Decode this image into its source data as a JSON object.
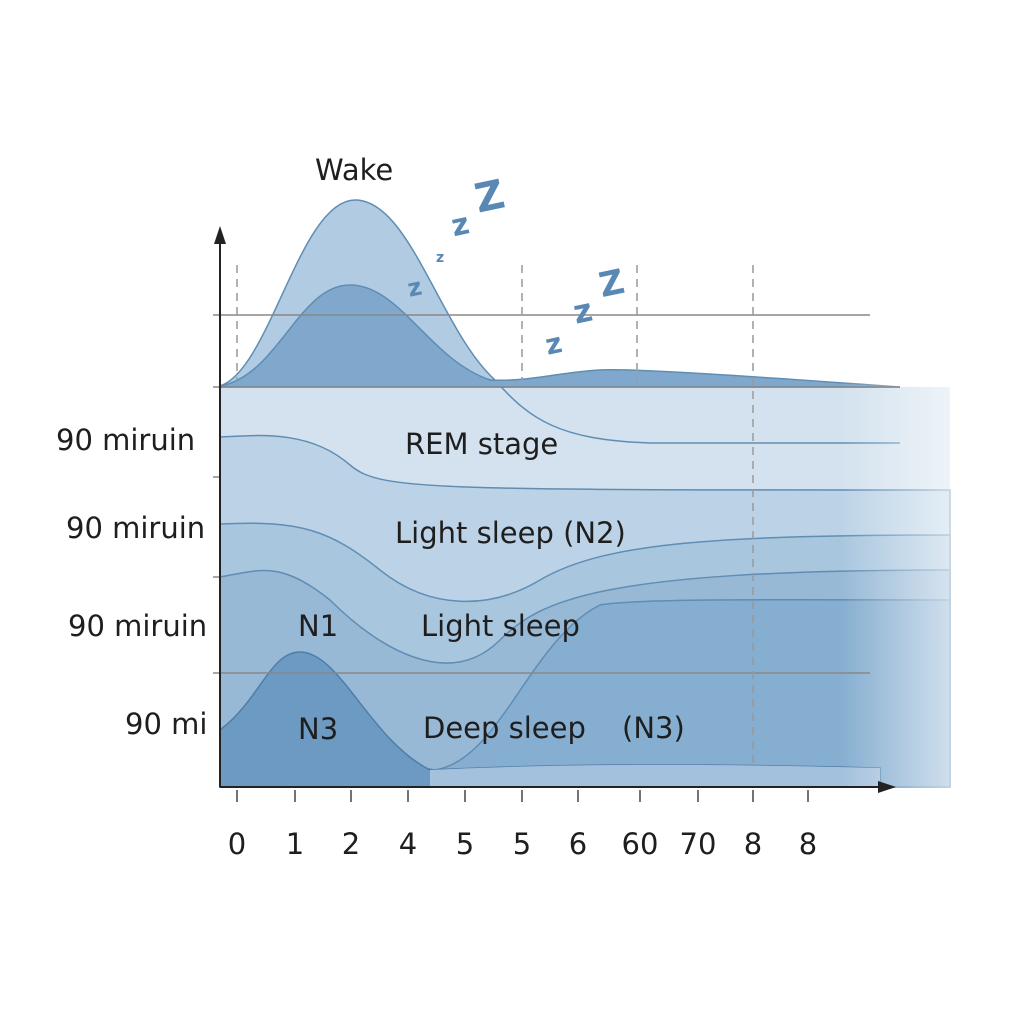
{
  "title": "Wake",
  "y_labels": [
    "90 miruin",
    "90 miruin",
    "90 miruin",
    "90 mi"
  ],
  "x_labels": [
    "0",
    "1",
    "2",
    "4",
    "5",
    "5",
    "6",
    "60",
    "70",
    "8",
    "8"
  ],
  "stages": [
    "REM stage",
    "Light sleep (N2)",
    "N1",
    "Light sleep",
    "N3",
    "Deep sleep",
    "(N3)"
  ],
  "z_marks": [
    "z",
    "z",
    "z",
    "Z",
    "z",
    "z",
    "Z"
  ]
}
